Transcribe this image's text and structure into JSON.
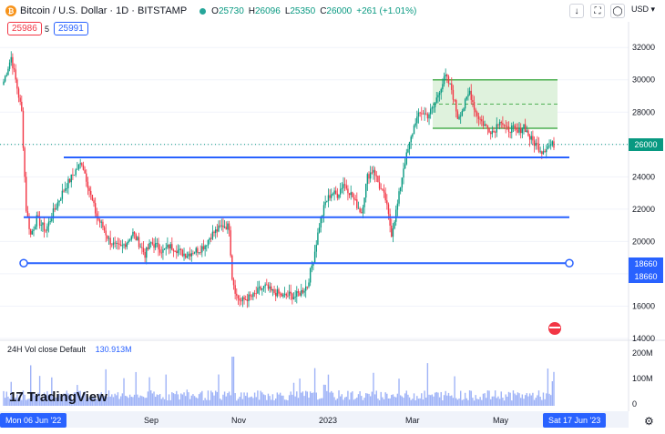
{
  "header": {
    "symbol_title": "Bitcoin / U.S. Dollar · 1D · BITSTAMP",
    "coin_icon_glyph": "₿",
    "ohlc": [
      {
        "k": "O",
        "v": "25730"
      },
      {
        "k": "H",
        "v": "26096"
      },
      {
        "k": "L",
        "v": "25350"
      },
      {
        "k": "C",
        "v": "26000"
      }
    ],
    "change": "+261 (+1.01%)",
    "sell_price": "25986",
    "spread": "5",
    "buy_price": "25991",
    "currency": "USD",
    "toolbar_icons": [
      "arrow-down-icon",
      "fullscreen-icon",
      "camera-icon"
    ]
  },
  "volume": {
    "legend": "24H Vol  close Default",
    "value": "130.913M",
    "ticks": [
      "200M",
      "100M",
      "0"
    ]
  },
  "logo": {
    "text": "TradingView",
    "mark": "17"
  },
  "colors": {
    "up": "#089981",
    "down": "#f23645",
    "line": "#2962ff",
    "box_fill": "#dff2dd",
    "box_border": "#4caf50",
    "volume": "#9fb3f7",
    "price_line": "#089981"
  },
  "chart_data": {
    "type": "candlestick",
    "x_range": [
      "2022-06-06",
      "2023-06-17"
    ],
    "x_ticks": [
      "Sep",
      "Nov",
      "2023",
      "Mar",
      "May"
    ],
    "x_badges": [
      "Mon 06 Jun '22",
      "Sat 17 Jun '23"
    ],
    "ylim": [
      14000,
      32800
    ],
    "y_ticks": [
      32000,
      30000,
      28000,
      26000,
      24000,
      22000,
      20000,
      18000,
      16000,
      14000
    ],
    "last_price": "26000",
    "level_badges": [
      "18660",
      "18660"
    ],
    "close_path": [
      [
        0,
        29900
      ],
      [
        5,
        31400
      ],
      [
        9,
        29500
      ],
      [
        12,
        28000
      ],
      [
        15,
        22000
      ],
      [
        18,
        20400
      ],
      [
        22,
        21400
      ],
      [
        28,
        20700
      ],
      [
        33,
        21800
      ],
      [
        37,
        22600
      ],
      [
        40,
        23200
      ],
      [
        44,
        23800
      ],
      [
        48,
        24400
      ],
      [
        52,
        24900
      ],
      [
        55,
        23900
      ],
      [
        58,
        22800
      ],
      [
        62,
        21500
      ],
      [
        66,
        20900
      ],
      [
        70,
        20100
      ],
      [
        74,
        19700
      ],
      [
        78,
        19600
      ],
      [
        82,
        20000
      ],
      [
        86,
        20500
      ],
      [
        90,
        19900
      ],
      [
        94,
        19200
      ],
      [
        98,
        19900
      ],
      [
        102,
        19700
      ],
      [
        106,
        19400
      ],
      [
        110,
        19700
      ],
      [
        114,
        19600
      ],
      [
        118,
        19300
      ],
      [
        122,
        19200
      ],
      [
        126,
        19400
      ],
      [
        130,
        19500
      ],
      [
        134,
        19800
      ],
      [
        138,
        20400
      ],
      [
        142,
        20700
      ],
      [
        146,
        21000
      ],
      [
        150,
        20900
      ],
      [
        152,
        17800
      ],
      [
        155,
        16600
      ],
      [
        158,
        16300
      ],
      [
        162,
        16500
      ],
      [
        166,
        16600
      ],
      [
        170,
        17000
      ],
      [
        174,
        17200
      ],
      [
        178,
        16900
      ],
      [
        182,
        16800
      ],
      [
        186,
        16600
      ],
      [
        190,
        16700
      ],
      [
        194,
        16600
      ],
      [
        198,
        16900
      ],
      [
        202,
        17300
      ],
      [
        206,
        18900
      ],
      [
        210,
        21000
      ],
      [
        214,
        22400
      ],
      [
        218,
        23000
      ],
      [
        222,
        22900
      ],
      [
        226,
        23600
      ],
      [
        230,
        23100
      ],
      [
        234,
        22400
      ],
      [
        238,
        21800
      ],
      [
        242,
        24000
      ],
      [
        246,
        24500
      ],
      [
        250,
        23400
      ],
      [
        254,
        22600
      ],
      [
        258,
        20500
      ],
      [
        262,
        22300
      ],
      [
        266,
        24600
      ],
      [
        270,
        26000
      ],
      [
        274,
        27500
      ],
      [
        278,
        28000
      ],
      [
        282,
        27800
      ],
      [
        286,
        28300
      ],
      [
        290,
        29400
      ],
      [
        294,
        30200
      ],
      [
        298,
        29400
      ],
      [
        302,
        27700
      ],
      [
        306,
        28300
      ],
      [
        310,
        29300
      ],
      [
        314,
        28000
      ],
      [
        318,
        27400
      ],
      [
        322,
        27000
      ],
      [
        326,
        26800
      ],
      [
        330,
        27600
      ],
      [
        334,
        26900
      ],
      [
        338,
        27000
      ],
      [
        342,
        26700
      ],
      [
        346,
        27200
      ],
      [
        350,
        26400
      ],
      [
        354,
        26000
      ],
      [
        358,
        25600
      ],
      [
        362,
        25900
      ],
      [
        366,
        26000
      ]
    ],
    "annotations": [
      {
        "type": "hline",
        "price": 25200,
        "x_start": 0.095
      },
      {
        "type": "hline",
        "price": 21500,
        "x_start": 0.0
      },
      {
        "type": "ray",
        "price": 18660,
        "x_start": 0.0,
        "x_end": 1.0
      },
      {
        "type": "range_box",
        "top": 30000,
        "mid": 28500,
        "bottom": 27000,
        "x_start": 0.76,
        "x_end": 0.98
      }
    ]
  }
}
